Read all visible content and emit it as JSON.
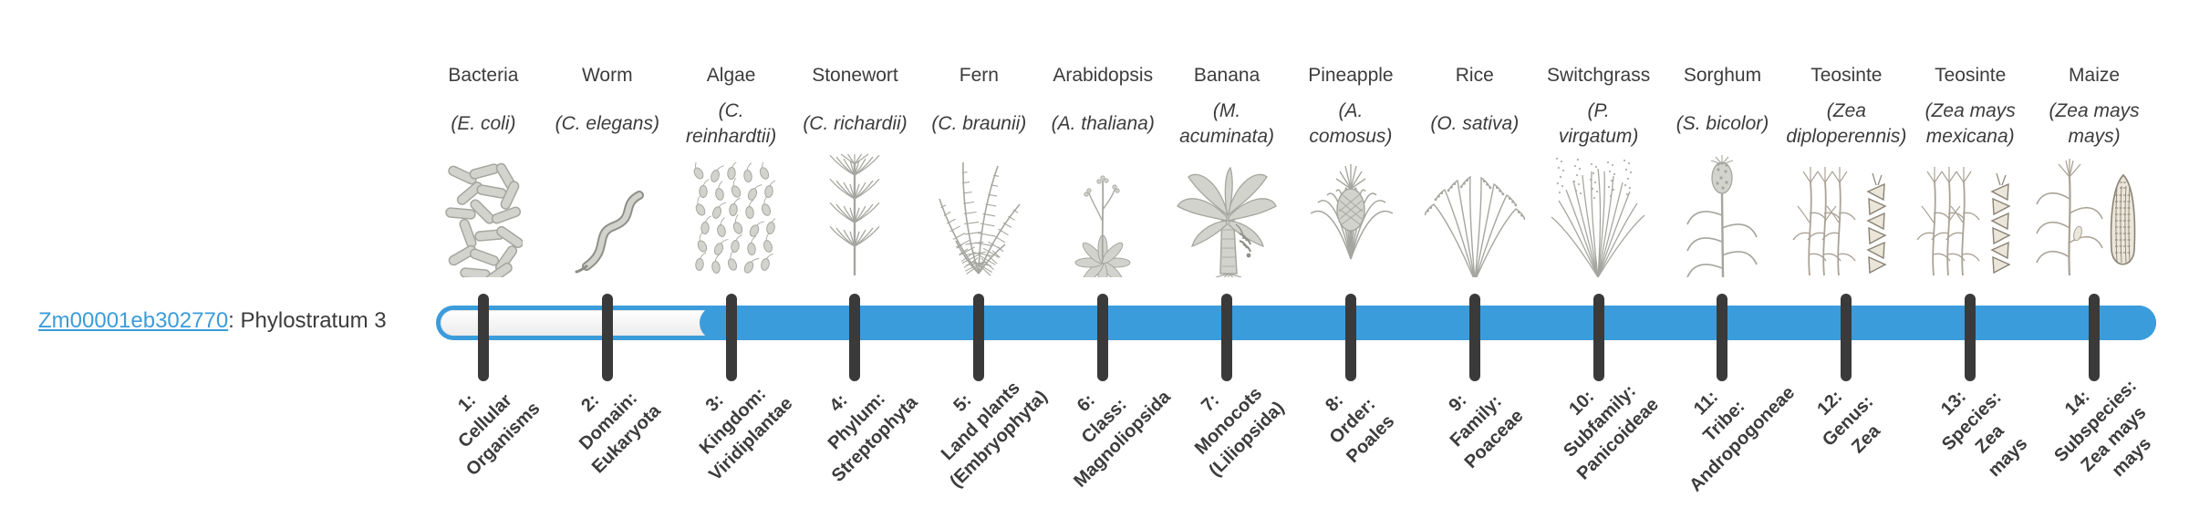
{
  "gene": {
    "id": "Zm00001eb302770",
    "suffix": ": Phylostratum 3",
    "phylostratum": 3
  },
  "colors": {
    "bar_blue": "#3B9CDB",
    "tick": "#3A3A3A",
    "text": "#3C3C3C",
    "link": "#3C9CD8"
  },
  "timeline": {
    "num_strata": 14,
    "filled_from_stratum": 3
  },
  "organisms": [
    {
      "common": "Bacteria",
      "scientific": "(E. coli)",
      "icon": "bacteria-icon"
    },
    {
      "common": "Worm",
      "scientific": "(C. elegans)",
      "icon": "worm-icon"
    },
    {
      "common": "Algae",
      "scientific": "(C.\nreinhardtii)",
      "icon": "algae-icon"
    },
    {
      "common": "Stonewort",
      "scientific": "(C. richardii)",
      "icon": "stonewort-icon"
    },
    {
      "common": "Fern",
      "scientific": "(C. braunii)",
      "icon": "fern-icon"
    },
    {
      "common": "Arabidopsis",
      "scientific": "(A. thaliana)",
      "icon": "arabidopsis-icon"
    },
    {
      "common": "Banana",
      "scientific": "(M.\nacuminata)",
      "icon": "banana-icon"
    },
    {
      "common": "Pineapple",
      "scientific": "(A.\ncomosus)",
      "icon": "pineapple-icon"
    },
    {
      "common": "Rice",
      "scientific": "(O. sativa)",
      "icon": "rice-icon"
    },
    {
      "common": "Switchgrass",
      "scientific": "(P.\nvirgatum)",
      "icon": "switchgrass-icon"
    },
    {
      "common": "Sorghum",
      "scientific": "(S. bicolor)",
      "icon": "sorghum-icon"
    },
    {
      "common": "Teosinte",
      "scientific": "(Zea\ndiploperennis)",
      "icon": "teosinte-icon"
    },
    {
      "common": "Teosinte",
      "scientific": "(Zea mays\nmexicana)",
      "icon": "teosinte-icon"
    },
    {
      "common": "Maize",
      "scientific": "(Zea mays\nmays)",
      "icon": "maize-icon"
    }
  ],
  "strata": [
    {
      "label": "1:\nCellular\nOrganisms"
    },
    {
      "label": "2:\nDomain:\nEukaryota"
    },
    {
      "label": "3:\nKingdom:\nViridiplantae"
    },
    {
      "label": "4:\nPhylum:\nStreptophyta"
    },
    {
      "label": "5:\nLand plants\n(Embryophyta)"
    },
    {
      "label": "6:\nClass:\nMagnoliopsida"
    },
    {
      "label": "7:\nMonocots\n(Liliopsida)"
    },
    {
      "label": "8:\nOrder:\nPoales"
    },
    {
      "label": "9:\nFamily:\nPoaceae"
    },
    {
      "label": "10:\nSubfamily:\nPanicoideae"
    },
    {
      "label": "11:\nTribe:\nAndropogoneae"
    },
    {
      "label": "12:\nGenus:\nZea"
    },
    {
      "label": "13:\nSpecies:\nZea\nmays"
    },
    {
      "label": "14:\nSubspecies:\nZea mays\nmays"
    }
  ]
}
